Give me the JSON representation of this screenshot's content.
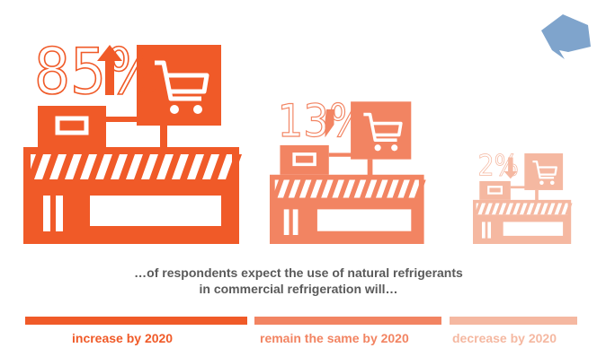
{
  "chart_data": {
    "type": "bar",
    "categories": [
      "increase by 2020",
      "remain the same by 2020",
      "decrease by 2020"
    ],
    "values": [
      85,
      13,
      2
    ],
    "value_labels": [
      "85%",
      "13%",
      "2%"
    ],
    "trend_arrows": [
      "up",
      "flat",
      "down"
    ],
    "caption_lines": [
      "…of respondents expect the use of natural refrigerants",
      "in commercial refrigeration will…"
    ],
    "colors": [
      "#f05a28",
      "#f28462",
      "#f5b8a1"
    ]
  },
  "accent_color": "#7fa4cc"
}
